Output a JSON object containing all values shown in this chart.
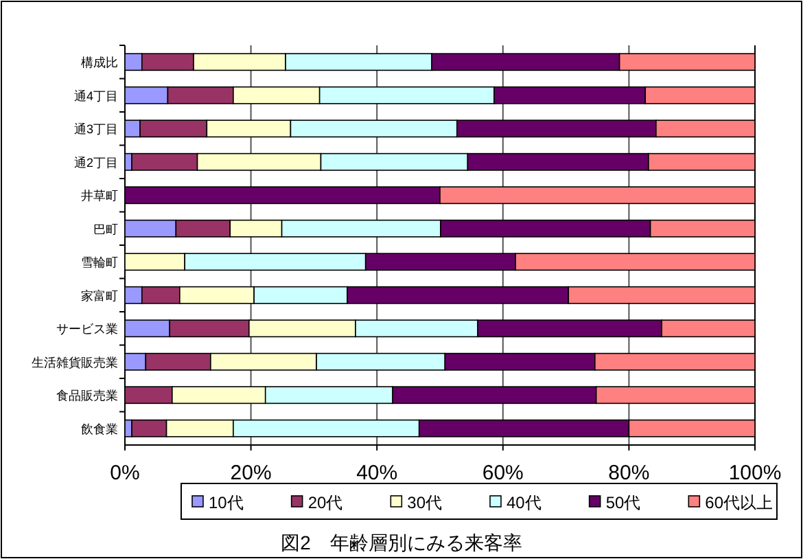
{
  "chart_data": {
    "type": "bar",
    "orientation": "horizontal",
    "stacked": true,
    "title": "図2　年齢層別にみる来客率",
    "categories": [
      "構成比",
      "通4丁目",
      "通3丁目",
      "通2丁目",
      "井草町",
      "巴町",
      "雪輪町",
      "家富町",
      "サービス業",
      "生活雑貨販売業",
      "食品販売業",
      "飲食業"
    ],
    "series": [
      {
        "name": "10代",
        "color": "#9999ff",
        "values": [
          2.7,
          6.8,
          2.4,
          1.1,
          0,
          8.1,
          0,
          2.7,
          7.1,
          3.3,
          0,
          1.1
        ]
      },
      {
        "name": "20代",
        "color": "#993366",
        "values": [
          8.2,
          10.4,
          10.6,
          10.4,
          0,
          8.6,
          0,
          6.0,
          12.6,
          10.3,
          7.5,
          5.5
        ]
      },
      {
        "name": "30代",
        "color": "#ffffcc",
        "values": [
          14.6,
          13.7,
          13.3,
          19.6,
          0,
          8.2,
          9.5,
          11.8,
          16.9,
          16.8,
          14.8,
          10.6
        ]
      },
      {
        "name": "40代",
        "color": "#ccffff",
        "values": [
          23.2,
          27.7,
          26.4,
          23.3,
          0,
          25.2,
          28.7,
          14.8,
          19.4,
          20.4,
          20.2,
          29.5
        ]
      },
      {
        "name": "50代",
        "color": "#660066",
        "values": [
          29.8,
          24.0,
          31.6,
          28.7,
          50,
          33.3,
          23.8,
          35.1,
          29.2,
          23.8,
          32.3,
          33.3
        ]
      },
      {
        "name": "60代以上",
        "color": "#ff8080",
        "values": [
          21.5,
          17.4,
          15.7,
          16.9,
          50,
          16.6,
          38.0,
          29.6,
          14.8,
          25.4,
          25.2,
          20.0
        ]
      }
    ],
    "xlim": [
      0,
      100
    ],
    "xticks": [
      {
        "value": 0,
        "label": "0%"
      },
      {
        "value": 20,
        "label": "20%"
      },
      {
        "value": 40,
        "label": "40%"
      },
      {
        "value": 60,
        "label": "60%"
      },
      {
        "value": 80,
        "label": "80%"
      },
      {
        "value": 100,
        "label": "100%"
      }
    ],
    "grid": "x",
    "legend": "bottom"
  }
}
